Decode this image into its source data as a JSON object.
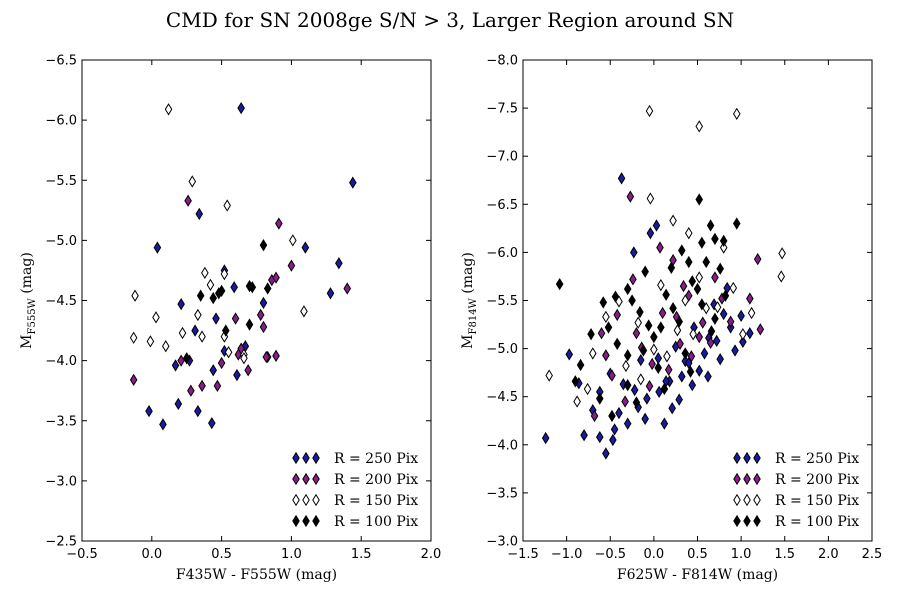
{
  "figure_title": "CMD for SN 2008ge S/N > 3, Larger Region around SN",
  "chart_data": [
    {
      "type": "scatter",
      "xlabel": "F435W - F555W (mag)",
      "ylabel_main": "M",
      "ylabel_sub": "F555W",
      "ylabel_unit": "(mag)",
      "xlim": [
        -0.5,
        2.0
      ],
      "ylim": [
        -2.5,
        -6.5
      ],
      "y_inverted": true,
      "xticks": [
        -0.5,
        0.0,
        0.5,
        1.0,
        1.5,
        2.0
      ],
      "xtick_labels": [
        "−0.5",
        "0.0",
        "0.5",
        "1.0",
        "1.5",
        "2.0"
      ],
      "yticks": [
        -6.5,
        -6.0,
        -5.5,
        -5.0,
        -4.5,
        -4.0,
        -3.5,
        -3.0,
        -2.5
      ],
      "ytick_labels": [
        "−6.5",
        "−6.0",
        "−5.5",
        "−5.0",
        "−4.5",
        "−4.0",
        "−3.5",
        "−3.0",
        "−2.5"
      ],
      "legend_location": "lower-right",
      "marker": "thin-diamond",
      "series": [
        {
          "name": "R = 250 Pix",
          "color": "#1a1aa0",
          "points": [
            [
              0.64,
              -6.1
            ],
            [
              1.44,
              -5.48
            ],
            [
              0.34,
              -5.22
            ],
            [
              0.04,
              -4.94
            ],
            [
              1.1,
              -4.94
            ],
            [
              1.34,
              -4.81
            ],
            [
              0.52,
              -4.75
            ],
            [
              0.21,
              -4.47
            ],
            [
              1.28,
              -4.56
            ],
            [
              0.8,
              -4.48
            ],
            [
              0.59,
              -4.61
            ],
            [
              0.46,
              -4.35
            ],
            [
              0.31,
              -4.25
            ],
            [
              0.27,
              -4.0
            ],
            [
              0.17,
              -3.96
            ],
            [
              0.44,
              -3.92
            ],
            [
              0.61,
              -3.88
            ],
            [
              0.67,
              -4.12
            ],
            [
              0.19,
              -3.64
            ],
            [
              0.33,
              -3.58
            ],
            [
              -0.02,
              -3.58
            ],
            [
              0.08,
              -3.47
            ],
            [
              0.43,
              -3.48
            ],
            [
              0.83,
              -4.03
            ],
            [
              0.52,
              -4.08
            ]
          ]
        },
        {
          "name": "R = 200 Pix",
          "color": "#8b1a8b",
          "points": [
            [
              0.26,
              -5.33
            ],
            [
              0.91,
              -5.14
            ],
            [
              1.0,
              -4.79
            ],
            [
              0.86,
              -4.67
            ],
            [
              0.89,
              -4.69
            ],
            [
              1.4,
              -4.6
            ],
            [
              0.6,
              -4.35
            ],
            [
              0.78,
              -4.38
            ],
            [
              0.8,
              -4.28
            ],
            [
              0.64,
              -4.1
            ],
            [
              0.62,
              -4.05
            ],
            [
              0.5,
              -3.98
            ],
            [
              0.69,
              -3.92
            ],
            [
              0.36,
              -3.79
            ],
            [
              0.47,
              -3.79
            ],
            [
              0.28,
              -3.75
            ],
            [
              -0.13,
              -3.84
            ],
            [
              0.82,
              -4.03
            ],
            [
              0.89,
              -4.04
            ],
            [
              0.21,
              -4.0
            ]
          ]
        },
        {
          "name": "R = 150 Pix",
          "color": "#ffffff",
          "points": [
            [
              0.12,
              -6.09
            ],
            [
              0.29,
              -5.49
            ],
            [
              0.54,
              -5.29
            ],
            [
              1.01,
              -5.0
            ],
            [
              0.38,
              -4.73
            ],
            [
              0.52,
              -4.72
            ],
            [
              -0.12,
              -4.54
            ],
            [
              0.03,
              -4.36
            ],
            [
              0.22,
              -4.23
            ],
            [
              0.33,
              -4.38
            ],
            [
              0.52,
              -4.2
            ],
            [
              0.55,
              -4.07
            ],
            [
              0.66,
              -4.05
            ],
            [
              0.66,
              -4.02
            ],
            [
              0.1,
              -4.12
            ],
            [
              -0.13,
              -4.19
            ],
            [
              -0.01,
              -4.16
            ],
            [
              0.36,
              -4.2
            ],
            [
              1.09,
              -4.41
            ],
            [
              0.42,
              -4.63
            ]
          ]
        },
        {
          "name": "R = 100 Pix",
          "color": "#000000",
          "points": [
            [
              0.8,
              -4.96
            ],
            [
              0.35,
              -4.54
            ],
            [
              0.44,
              -4.52
            ],
            [
              0.48,
              -4.56
            ],
            [
              0.5,
              -4.58
            ],
            [
              0.7,
              -4.62
            ],
            [
              0.72,
              -4.61
            ],
            [
              0.83,
              -4.6
            ],
            [
              0.7,
              -4.3
            ],
            [
              0.53,
              -4.25
            ],
            [
              0.25,
              -4.02
            ]
          ]
        }
      ]
    },
    {
      "type": "scatter",
      "xlabel": "F625W - F814W (mag)",
      "ylabel_main": "M",
      "ylabel_sub": "F814W",
      "ylabel_unit": "(mag)",
      "xlim": [
        -1.5,
        2.5
      ],
      "ylim": [
        -3.0,
        -8.0
      ],
      "y_inverted": true,
      "xticks": [
        -1.5,
        -1.0,
        -0.5,
        0.0,
        0.5,
        1.0,
        1.5,
        2.0,
        2.5
      ],
      "xtick_labels": [
        "−1.5",
        "−1.0",
        "−0.5",
        "0.0",
        "0.5",
        "1.0",
        "1.5",
        "2.0",
        "2.5"
      ],
      "yticks": [
        -8.0,
        -7.5,
        -7.0,
        -6.5,
        -6.0,
        -5.5,
        -5.0,
        -4.5,
        -4.0,
        -3.5,
        -3.0
      ],
      "ytick_labels": [
        "−8.0",
        "−7.5",
        "−7.0",
        "−6.5",
        "−6.0",
        "−5.5",
        "−5.0",
        "−4.5",
        "−4.0",
        "−3.5",
        "−3.0"
      ],
      "legend_location": "lower-right",
      "marker": "thin-diamond",
      "series": [
        {
          "name": "R = 250 Pix",
          "color": "#1a1aa0",
          "points": [
            [
              -0.37,
              -6.77
            ],
            [
              -0.23,
              -6.0
            ],
            [
              -0.04,
              -6.2
            ],
            [
              0.03,
              -6.28
            ],
            [
              -1.24,
              -4.07
            ],
            [
              -0.97,
              -4.94
            ],
            [
              -0.55,
              -3.91
            ],
            [
              -0.62,
              -4.08
            ],
            [
              -0.47,
              -4.05
            ],
            [
              -0.3,
              -4.22
            ],
            [
              -0.4,
              -4.33
            ],
            [
              -0.1,
              -4.27
            ],
            [
              0.12,
              -4.22
            ],
            [
              0.21,
              -4.38
            ],
            [
              0.29,
              -4.47
            ],
            [
              0.44,
              -4.62
            ],
            [
              0.52,
              -4.77
            ],
            [
              0.62,
              -4.71
            ],
            [
              0.76,
              -4.89
            ],
            [
              0.93,
              -4.98
            ],
            [
              1.02,
              -5.07
            ],
            [
              1.1,
              -5.16
            ],
            [
              0.8,
              -5.36
            ],
            [
              0.63,
              -5.11
            ],
            [
              0.36,
              -4.87
            ],
            [
              0.18,
              -4.66
            ],
            [
              -0.08,
              -4.48
            ],
            [
              -0.22,
              -4.57
            ],
            [
              -0.5,
              -4.74
            ],
            [
              -0.7,
              -4.36
            ],
            [
              -0.86,
              -4.64
            ],
            [
              -0.15,
              -4.88
            ],
            [
              0.05,
              -4.9
            ],
            [
              0.25,
              -5.02
            ],
            [
              0.46,
              -5.22
            ],
            [
              0.69,
              -5.46
            ],
            [
              0.84,
              -5.63
            ],
            [
              -0.62,
              -4.55
            ],
            [
              -0.35,
              -4.63
            ],
            [
              0.06,
              -4.55
            ],
            [
              0.32,
              -4.71
            ],
            [
              0.58,
              -4.95
            ],
            [
              0.88,
              -5.22
            ],
            [
              -0.8,
              -4.1
            ],
            [
              -0.45,
              -4.16
            ],
            [
              -0.18,
              -4.39
            ],
            [
              0.14,
              -4.66
            ],
            [
              0.4,
              -4.85
            ],
            [
              0.72,
              -5.08
            ],
            [
              1.0,
              -5.34
            ]
          ]
        },
        {
          "name": "R = 200 Pix",
          "color": "#8b1a8b",
          "points": [
            [
              -0.27,
              -6.58
            ],
            [
              0.07,
              -6.05
            ],
            [
              0.22,
              -5.92
            ],
            [
              0.34,
              -5.65
            ],
            [
              1.19,
              -5.93
            ],
            [
              1.22,
              -5.2
            ],
            [
              1.1,
              -5.52
            ],
            [
              0.52,
              -5.12
            ],
            [
              -0.24,
              -5.72
            ],
            [
              -0.42,
              -5.35
            ],
            [
              -0.6,
              -5.16
            ],
            [
              -0.68,
              -4.3
            ],
            [
              -0.33,
              -4.45
            ],
            [
              -0.05,
              -4.61
            ],
            [
              0.17,
              -4.78
            ],
            [
              0.43,
              -4.92
            ],
            [
              0.65,
              -5.06
            ],
            [
              0.88,
              -5.28
            ],
            [
              0.26,
              -5.33
            ],
            [
              -0.14,
              -5.01
            ],
            [
              -0.48,
              -4.72
            ],
            [
              -0.02,
              -4.84
            ],
            [
              0.3,
              -5.05
            ],
            [
              0.56,
              -5.27
            ],
            [
              0.78,
              -5.52
            ],
            [
              -0.55,
              -4.93
            ],
            [
              -0.2,
              -5.16
            ],
            [
              0.1,
              -5.37
            ],
            [
              0.4,
              -5.55
            ],
            [
              0.7,
              -5.74
            ]
          ]
        },
        {
          "name": "R = 150 Pix",
          "color": "#ffffff",
          "points": [
            [
              -0.05,
              -7.47
            ],
            [
              0.52,
              -7.31
            ],
            [
              0.95,
              -7.44
            ],
            [
              -0.04,
              -6.56
            ],
            [
              0.22,
              -6.33
            ],
            [
              0.4,
              -6.2
            ],
            [
              0.8,
              -6.05
            ],
            [
              1.47,
              -5.99
            ],
            [
              1.46,
              -5.75
            ],
            [
              -1.2,
              -4.72
            ],
            [
              -0.88,
              -4.45
            ],
            [
              -0.76,
              -4.58
            ],
            [
              -0.4,
              -5.49
            ],
            [
              -0.55,
              -5.33
            ],
            [
              0.08,
              -5.66
            ],
            [
              0.52,
              -5.74
            ],
            [
              1.12,
              -5.37
            ],
            [
              1.02,
              -5.15
            ],
            [
              0.73,
              -5.43
            ],
            [
              0.36,
              -5.5
            ],
            [
              -0.18,
              -5.27
            ],
            [
              -0.32,
              -4.82
            ],
            [
              0.0,
              -4.99
            ],
            [
              0.27,
              -5.19
            ],
            [
              0.6,
              -5.42
            ],
            [
              0.91,
              -5.63
            ],
            [
              -0.7,
              -4.95
            ],
            [
              -0.15,
              -4.68
            ],
            [
              0.15,
              -4.92
            ],
            [
              0.45,
              -5.15
            ]
          ]
        },
        {
          "name": "R = 100 Pix",
          "color": "#000000",
          "points": [
            [
              -1.08,
              -5.67
            ],
            [
              0.52,
              -6.55
            ],
            [
              0.95,
              -6.3
            ],
            [
              0.65,
              -6.28
            ],
            [
              0.7,
              -6.14
            ],
            [
              0.8,
              -6.12
            ],
            [
              0.55,
              -6.1
            ],
            [
              0.4,
              -5.9
            ],
            [
              0.2,
              -5.84
            ],
            [
              -0.1,
              -5.8
            ],
            [
              -0.3,
              -5.62
            ],
            [
              -0.44,
              -5.54
            ],
            [
              -0.58,
              -5.48
            ],
            [
              -0.72,
              -5.15
            ],
            [
              -0.84,
              -4.83
            ],
            [
              -0.9,
              -4.66
            ],
            [
              -0.3,
              -4.93
            ],
            [
              0.0,
              -5.12
            ],
            [
              0.29,
              -5.28
            ],
            [
              0.55,
              -5.46
            ],
            [
              0.82,
              -5.55
            ],
            [
              -0.52,
              -5.22
            ],
            [
              -0.16,
              -5.38
            ],
            [
              0.14,
              -5.56
            ],
            [
              0.44,
              -5.7
            ],
            [
              -0.62,
              -4.48
            ],
            [
              -0.3,
              -4.62
            ],
            [
              0.05,
              -4.8
            ],
            [
              0.36,
              -4.95
            ],
            [
              0.66,
              -5.18
            ],
            [
              -0.42,
              -5.05
            ],
            [
              -0.06,
              -5.24
            ],
            [
              0.22,
              -5.42
            ],
            [
              0.5,
              -5.62
            ],
            [
              0.76,
              -5.83
            ],
            [
              -0.2,
              -4.44
            ],
            [
              0.12,
              -4.58
            ],
            [
              0.42,
              -4.76
            ],
            [
              -0.48,
              -4.3
            ],
            [
              -0.12,
              -4.98
            ],
            [
              0.6,
              -5.9
            ],
            [
              0.32,
              -6.02
            ],
            [
              0.08,
              -5.22
            ],
            [
              -0.25,
              -5.5
            ],
            [
              0.7,
              -5.31
            ]
          ]
        }
      ]
    }
  ]
}
